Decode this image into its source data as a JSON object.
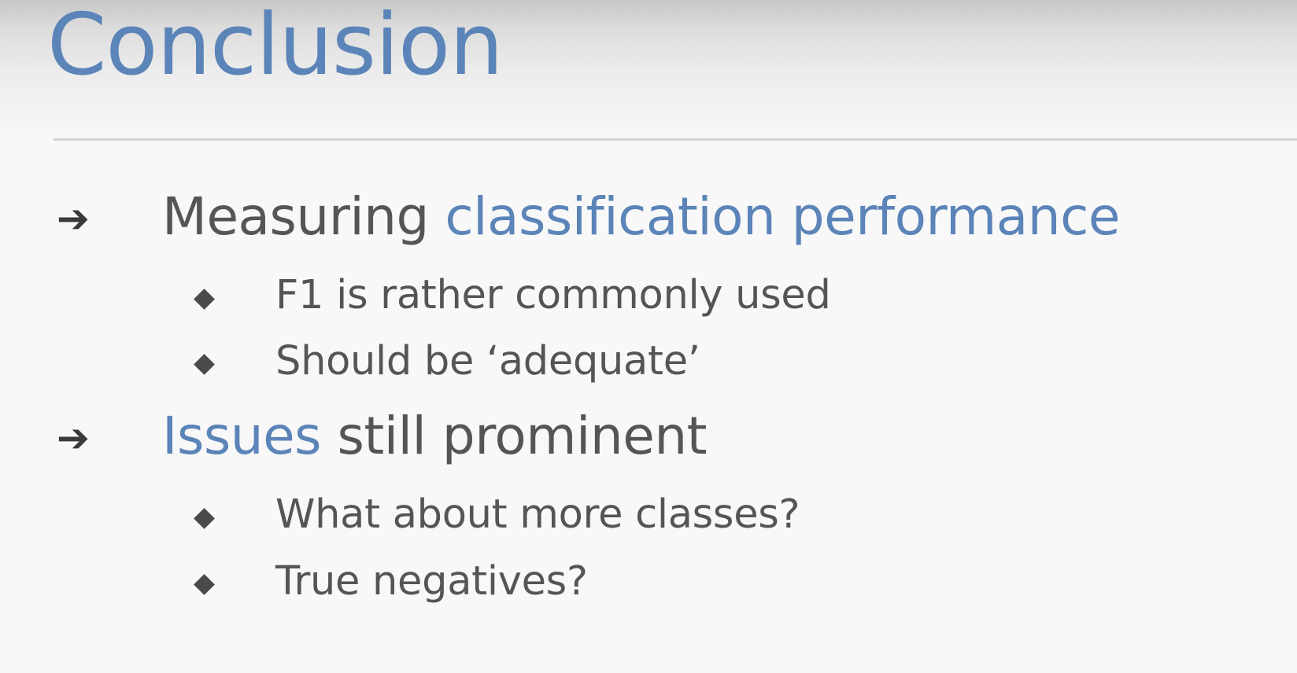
{
  "slide": {
    "title": "Conclusion",
    "bullets": [
      {
        "icon": "arrow-right-icon",
        "text_plain_before": "Measuring ",
        "text_accent": "classification performance",
        "text_plain_after": "",
        "subitems": [
          {
            "icon": "diamond-bullet-icon",
            "text": "F1 is rather commonly used"
          },
          {
            "icon": "diamond-bullet-icon",
            "text": "Should be ‘adequate’"
          }
        ]
      },
      {
        "icon": "arrow-right-icon",
        "text_plain_before": "",
        "text_accent": "Issues",
        "text_plain_after": " still prominent",
        "subitems": [
          {
            "icon": "diamond-bullet-icon",
            "text": "What about more classes?"
          },
          {
            "icon": "diamond-bullet-icon",
            "text": "True negatives?"
          }
        ]
      }
    ],
    "arrow_glyph": "➔",
    "colors": {
      "accent": "#5b84b8",
      "body_text": "#555555",
      "bullet": "#4a4a4a",
      "rule": "#d3d3d3",
      "background": "#f8f8f8"
    }
  }
}
